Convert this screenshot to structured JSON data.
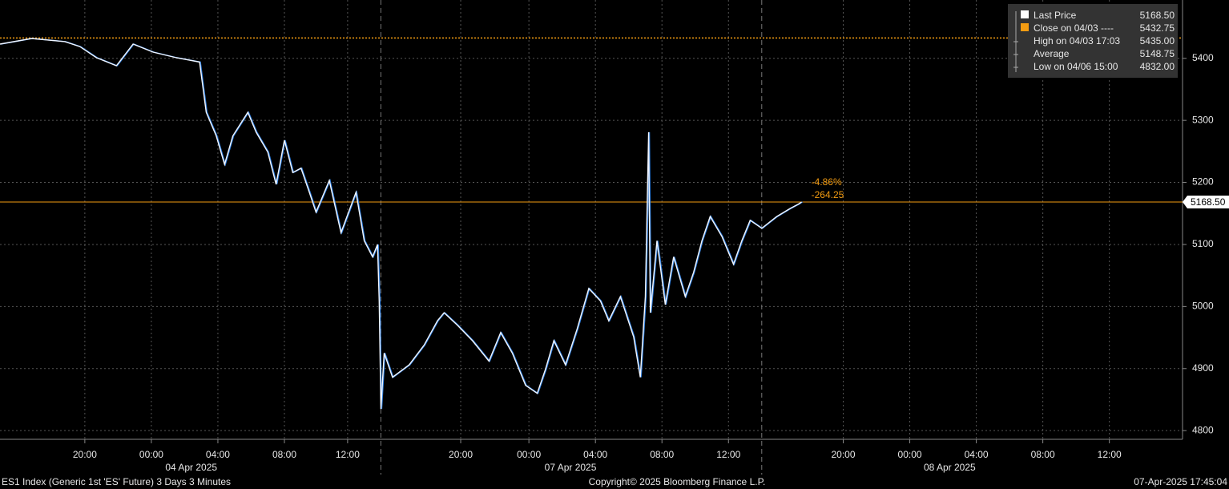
{
  "chart_data": {
    "type": "line",
    "x": [
      0,
      1.9,
      3.9,
      4.8,
      5.8,
      7.0,
      8.0,
      9.2,
      10.6,
      12.0,
      12.4,
      13.0,
      13.5,
      14.0,
      14.9,
      15.4,
      16.1,
      16.6,
      17.1,
      17.6,
      18.1,
      18.6,
      19.0,
      19.8,
      20.5,
      21.4,
      21.9,
      22.4,
      22.7,
      22.8,
      22.9,
      23.1,
      23.6,
      24.6,
      25.5,
      26.3,
      26.7,
      27.5,
      28.4,
      29.4,
      30.1,
      30.8,
      31.6,
      32.3,
      32.8,
      33.3,
      34.0,
      34.7,
      35.4,
      36.1,
      36.6,
      37.3,
      38.1,
      38.5,
      38.8,
      39.0,
      39.1,
      39.5,
      40.0,
      40.5,
      41.2,
      41.7,
      42.2,
      42.7,
      43.4,
      44.1,
      44.6,
      45.1,
      45.8,
      46.7,
      47.5,
      48.0,
      48.2
    ],
    "series": [
      {
        "name": "Last Price",
        "color": "#f2f6ff",
        "values": [
          5423,
          5432,
          5427,
          5419,
          5401,
          5388,
          5423,
          5410,
          5401,
          5394,
          5313,
          5275,
          5229,
          5275,
          5313,
          5281,
          5249,
          5197,
          5268,
          5216,
          5223,
          5184,
          5152,
          5203,
          5119,
          5184,
          5106,
          5080,
          5100,
          5009,
          4835,
          4925,
          4886,
          4906,
          4938,
          4977,
          4990,
          4970,
          4945,
          4912,
          4958,
          4925,
          4873,
          4860,
          4899,
          4945,
          4906,
          4964,
          5029,
          5009,
          4977,
          5016,
          4951,
          4886,
          5016,
          5281,
          4990,
          5106,
          5003,
          5080,
          5016,
          5055,
          5106,
          5145,
          5113,
          5068,
          5106,
          5139,
          5126,
          5145,
          5158,
          5165,
          5168.5
        ]
      }
    ],
    "xlim": [
      0,
      71.1
    ],
    "ylim": [
      4786,
      5494
    ],
    "yticks": [
      4800,
      4900,
      5000,
      5100,
      5200,
      5300,
      5400
    ],
    "xticks": [
      {
        "value": 5.1,
        "label": "20:00"
      },
      {
        "value": 9.1,
        "label": "00:00"
      },
      {
        "value": 13.1,
        "label": "04:00"
      },
      {
        "value": 17.1,
        "label": "08:00"
      },
      {
        "value": 20.9,
        "label": "12:00"
      },
      {
        "value": 27.7,
        "label": "20:00"
      },
      {
        "value": 31.8,
        "label": "00:00"
      },
      {
        "value": 35.8,
        "label": "04:00"
      },
      {
        "value": 39.8,
        "label": "08:00"
      },
      {
        "value": 43.8,
        "label": "12:00"
      },
      {
        "value": 50.7,
        "label": "20:00"
      },
      {
        "value": 54.7,
        "label": "00:00"
      },
      {
        "value": 58.7,
        "label": "04:00"
      },
      {
        "value": 62.7,
        "label": "08:00"
      },
      {
        "value": 66.7,
        "label": "12:00"
      }
    ],
    "date_labels": [
      {
        "value": 11.5,
        "label": "04 Apr 2025"
      },
      {
        "value": 34.3,
        "label": "07 Apr 2025"
      },
      {
        "value": 57.1,
        "label": "08 Apr 2025"
      }
    ],
    "session_breaks": [
      22.9,
      45.8
    ],
    "grid": true,
    "last_price": {
      "value": 5168.5,
      "label": "5168.50",
      "color": "#f39c12"
    },
    "close": {
      "value": 5432.75,
      "label": "5432.75",
      "color": "#f39c12"
    },
    "change_pct": "-4.86%",
    "change_pts": "-264.25",
    "legend": {
      "last": "Last Price",
      "close": "Close on 04/03 ----",
      "high": "High on 04/03 17:03",
      "high_value": "5435.00",
      "average": "Average",
      "average_value": "5148.75",
      "low": "Low on 04/06 15:00",
      "low_value": "4832.00"
    },
    "footer": {
      "left": "ES1 Index (Generic 1st 'ES' Future) 3 Days 3 Minutes",
      "center": "Copyright© 2025 Bloomberg Finance L.P.",
      "right": "07-Apr-2025 17:45:04"
    }
  }
}
